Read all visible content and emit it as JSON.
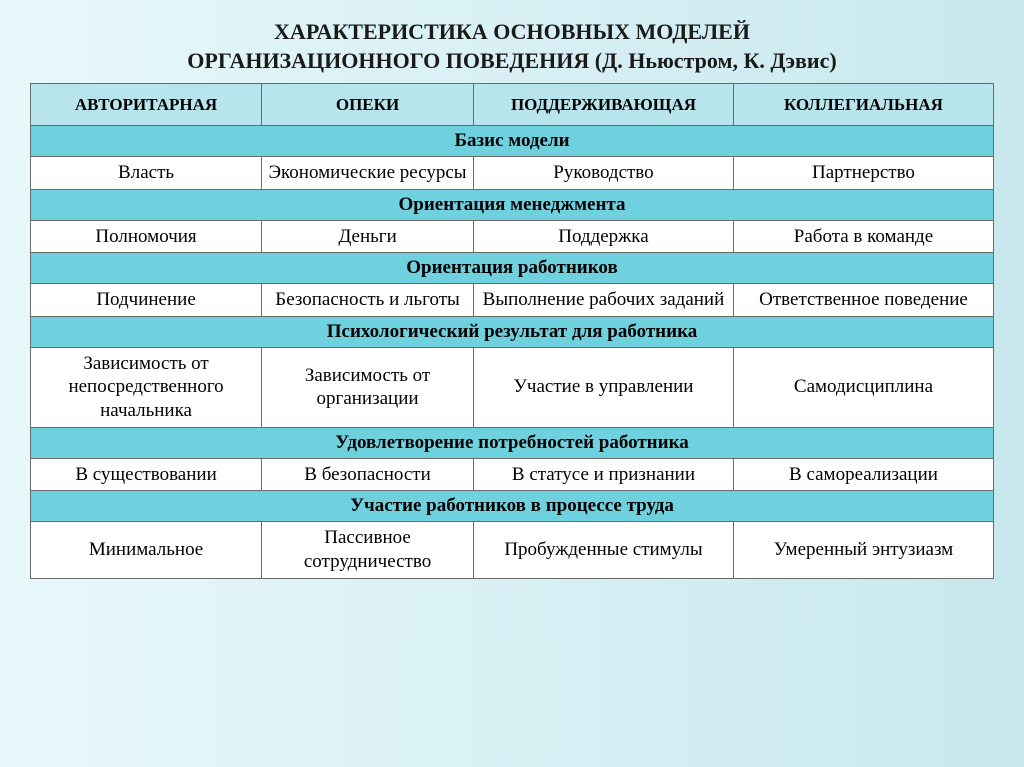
{
  "title": {
    "line1": "ХАРАКТЕРИСТИКА ОСНОВНЫХ МОДЕЛЕЙ",
    "line2": "ОРГАНИЗАЦИОННОГО ПОВЕДЕНИЯ (Д. Ньюстром, К. Дэвис)"
  },
  "colors": {
    "header_bg": "#b8e4ec",
    "section_bg": "#6fd0de",
    "data_bg": "#ffffff",
    "border": "#6a6a6a",
    "slide_bg_left": "#e8f8fb",
    "slide_bg_right": "#c8e8ee",
    "text": "#000000"
  },
  "typography": {
    "title_fontsize": 22,
    "header_fontsize": 17,
    "section_fontsize": 19,
    "cell_fontsize": 19,
    "font_family": "Georgia, Times New Roman, serif"
  },
  "table": {
    "type": "table",
    "column_widths_pct": [
      24,
      22,
      27,
      27
    ],
    "headers": [
      "АВТОРИТАРНАЯ",
      "ОПЕКИ",
      "ПОДДЕРЖИВАЮЩАЯ",
      "КОЛЛЕГИАЛЬНАЯ"
    ],
    "sections": [
      {
        "title": "Базис модели",
        "cells": [
          "Власть",
          "Экономические ресурсы",
          "Руководство",
          "Партнерство"
        ]
      },
      {
        "title": "Ориентация менеджмента",
        "cells": [
          "Полномочия",
          "Деньги",
          "Поддержка",
          "Работа в команде"
        ]
      },
      {
        "title": "Ориентация работников",
        "cells": [
          "Подчинение",
          "Безопасность и льготы",
          "Выполнение рабочих заданий",
          "Ответственное поведение"
        ]
      },
      {
        "title": "Психологический результат для работника",
        "cells": [
          "Зависимость от непосредственного начальника",
          "Зависимость от организации",
          "Участие в управлении",
          "Самодисциплина"
        ]
      },
      {
        "title": "Удовлетворение потребностей работника",
        "cells": [
          "В существовании",
          "В безопасности",
          "В статусе и признании",
          "В самореализации"
        ]
      },
      {
        "title": "Участие работников в процессе труда",
        "cells": [
          "Минимальное",
          "Пассивное сотрудничество",
          "Пробужденные стимулы",
          "Умеренный энтузиазм"
        ]
      }
    ]
  }
}
